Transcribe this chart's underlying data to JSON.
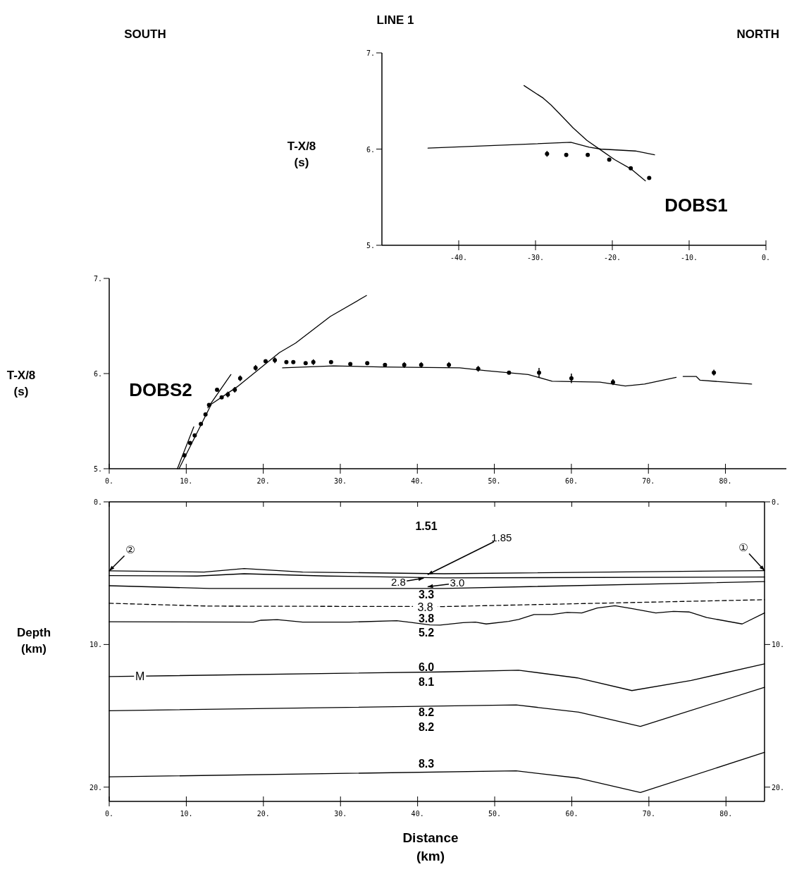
{
  "chart_data": [
    {
      "type": "line",
      "title": "LINE 1",
      "ylabel": "T-X/8 (s)",
      "xlim": [
        -50,
        0
      ],
      "ylim": [
        5,
        7
      ],
      "xticks": [
        {
          "value": -40,
          "label": "-40."
        },
        {
          "value": -30,
          "label": "-30."
        },
        {
          "value": -20,
          "label": "-20."
        },
        {
          "value": -10,
          "label": "-10."
        },
        {
          "value": 0,
          "label": "0."
        }
      ],
      "yticks": [
        {
          "value": 5,
          "label": "5."
        },
        {
          "value": 6,
          "label": "6."
        },
        {
          "value": 7,
          "label": "7."
        }
      ],
      "annotations": [
        "SOUTH",
        "NORTH",
        "DOBS1"
      ],
      "series": [
        {
          "type": "line",
          "color": "#000000",
          "x": [
            -44,
            -25.4,
            -23,
            -21.5,
            -17,
            -14.5
          ],
          "values": [
            6.01,
            6.07,
            6.02,
            6.0,
            5.98,
            5.94
          ]
        },
        {
          "type": "line",
          "color": "#000000",
          "x": [
            -31.5,
            -29,
            -28,
            -26.9,
            -25.1,
            -23.3,
            -21.5,
            -19.7,
            -17.5,
            -15.7
          ],
          "values": [
            6.66,
            6.53,
            6.46,
            6.37,
            6.22,
            6.09,
            5.99,
            5.89,
            5.79,
            5.67
          ]
        },
        {
          "type": "scatter",
          "color": "#000000",
          "marker": "circle",
          "x": [
            -28.5,
            -26,
            -23.2,
            -20.4,
            -17.6,
            -15.2
          ],
          "values": [
            5.95,
            5.94,
            5.94,
            5.89,
            5.8,
            5.7
          ],
          "errors": [
            0.03,
            0.02,
            null,
            null,
            null,
            null
          ]
        }
      ]
    },
    {
      "type": "line",
      "ylabel": "T-X/8 (s)",
      "xlim": [
        0,
        88
      ],
      "ylim": [
        5,
        7
      ],
      "xticks": [
        {
          "value": 0,
          "label": "0."
        },
        {
          "value": 10,
          "label": "10."
        },
        {
          "value": 20,
          "label": "20."
        },
        {
          "value": 30,
          "label": "30."
        },
        {
          "value": 40,
          "label": "40."
        },
        {
          "value": 50,
          "label": "50."
        },
        {
          "value": 60,
          "label": "60."
        },
        {
          "value": 70,
          "label": "70."
        },
        {
          "value": 80,
          "label": "80."
        }
      ],
      "yticks": [
        {
          "value": 5,
          "label": "5."
        },
        {
          "value": 6,
          "label": "6."
        },
        {
          "value": 7,
          "label": "7."
        }
      ],
      "annotations": [
        "DOBS2"
      ],
      "series": [
        {
          "type": "line",
          "color": "#000000",
          "x": [
            9.06,
            13.27,
            16.6,
            22.1,
            24.2,
            28.7,
            33.4
          ],
          "values": [
            5.0,
            5.68,
            5.86,
            6.22,
            6.32,
            6.6,
            6.82
          ]
        },
        {
          "type": "line",
          "color": "#000000",
          "x": [
            8.85,
            10.98
          ],
          "values": [
            5.0,
            5.44
          ]
        },
        {
          "type": "line",
          "color": "#000000",
          "x": [
            12.8,
            15.8
          ],
          "values": [
            5.64,
            5.99
          ]
        },
        {
          "type": "line",
          "color": "#000000",
          "x": [
            22.5,
            29.1,
            35.2,
            45.5,
            48.9,
            54.4,
            57.5,
            63.7,
            67.0,
            69.5,
            73.6,
            74.0,
            74.5,
            76.2,
            76.7,
            80.1,
            83.4
          ],
          "values": [
            6.06,
            6.08,
            6.07,
            6.06,
            6.03,
            5.99,
            5.92,
            5.91,
            5.87,
            5.89,
            5.96,
            null,
            5.97,
            5.97,
            5.93,
            5.91,
            5.89
          ]
        },
        {
          "type": "scatter",
          "color": "#000000",
          "marker": "circle",
          "x": [
            9.76,
            10.5,
            11.1,
            11.9,
            12.5,
            12.96,
            14.0,
            14.6,
            15.4,
            16.3,
            17.0,
            19.0,
            20.3,
            21.5,
            23.0,
            23.9,
            25.5,
            26.5,
            28.8,
            31.3,
            33.5,
            35.8,
            38.3,
            40.5,
            44.1,
            47.9,
            51.9,
            55.8,
            60.0,
            65.4,
            78.5
          ],
          "values": [
            5.14,
            5.27,
            5.35,
            5.47,
            5.57,
            5.67,
            5.83,
            5.75,
            5.78,
            5.83,
            5.95,
            6.06,
            6.13,
            6.14,
            6.12,
            6.12,
            6.11,
            6.12,
            6.12,
            6.1,
            6.11,
            6.09,
            6.09,
            6.09,
            6.09,
            6.05,
            6.01,
            6.01,
            5.95,
            5.91,
            6.01
          ],
          "errors": [
            null,
            null,
            null,
            null,
            null,
            null,
            null,
            null,
            0.03,
            0.03,
            0.03,
            0.03,
            null,
            0.03,
            null,
            null,
            null,
            0.03,
            null,
            null,
            null,
            null,
            0.03,
            0.03,
            0.03,
            0.03,
            null,
            0.05,
            0.05,
            0.03,
            0.03
          ]
        }
      ]
    },
    {
      "type": "line",
      "xlabel": "Distance (km)",
      "ylabel": "Depth (km)",
      "xlim": [
        0,
        85
      ],
      "ylim": [
        21,
        0
      ],
      "y2lim": [
        21,
        0
      ],
      "xticks": [
        {
          "value": 0,
          "label": "0."
        },
        {
          "value": 10,
          "label": "10."
        },
        {
          "value": 20,
          "label": "20."
        },
        {
          "value": 30,
          "label": "30."
        },
        {
          "value": 40,
          "label": "40."
        },
        {
          "value": 50,
          "label": "50."
        },
        {
          "value": 60,
          "label": "60."
        },
        {
          "value": 70,
          "label": "70."
        },
        {
          "value": 80,
          "label": "80."
        }
      ],
      "yticks": [
        {
          "value": 0,
          "label": "0."
        },
        {
          "value": 10,
          "label": "10."
        },
        {
          "value": 20,
          "label": "20."
        }
      ],
      "y2ticks": [
        {
          "value": 0,
          "label": "0."
        },
        {
          "value": 10,
          "label": "10."
        },
        {
          "value": 20,
          "label": "20."
        }
      ],
      "annotations": [
        "1.51",
        {
          "text": "1.85",
          "x": 41.3,
          "y": 5.1
        },
        {
          "text": "2.8",
          "x": 40.8,
          "y": 5.35
        },
        {
          "text": "3.0",
          "x": 41.3,
          "y": 5.95
        },
        "3.3",
        {
          "text": "3.8",
          "x": 41,
          "y": 7.35
        },
        "3.8",
        "5.2",
        "6.0",
        "8.1",
        "8.2",
        "8.2",
        "8.3",
        {
          "text": "M",
          "x": 4,
          "y": 12.2
        },
        {
          "text": "②",
          "x": 0,
          "y": 4.84
        },
        {
          "text": "①",
          "x": 85,
          "y": 4.82
        }
      ],
      "series": [
        {
          "type": "line",
          "color": "#000000",
          "x": [
            0,
            12.3,
            17.5,
            25.1,
            43.4,
            85
          ],
          "values": [
            4.84,
            4.92,
            4.68,
            4.92,
            5.04,
            4.82
          ]
        },
        {
          "type": "line",
          "color": "#000000",
          "x": [
            0,
            11.4,
            17.5,
            28.2,
            43.4,
            85
          ],
          "values": [
            5.17,
            5.2,
            5.04,
            5.2,
            5.33,
            5.27
          ]
        },
        {
          "type": "line",
          "color": "#000000",
          "x": [
            0,
            13,
            43.4,
            85
          ],
          "values": [
            5.88,
            6.07,
            6.07,
            5.59
          ]
        },
        {
          "type": "line",
          "color": "#000000",
          "line_style": "dashed",
          "x": [
            0,
            13,
            43.4,
            85
          ],
          "values": [
            7.11,
            7.31,
            7.34,
            6.86
          ]
        },
        {
          "type": "line",
          "color": "#000000",
          "x": [
            0,
            18.7,
            19.7,
            21.8,
            25.1,
            31.2,
            37.3,
            39.2,
            41.6,
            42.9,
            45.9,
            47.5,
            48.9,
            51.8,
            53.1,
            55.1,
            57.4,
            59.4,
            61.3,
            63.3,
            65.6,
            67.9,
            70.9,
            73.2,
            75.2,
            77.5,
            82.1,
            85
          ],
          "values": [
            8.41,
            8.43,
            8.3,
            8.26,
            8.43,
            8.43,
            8.33,
            8.46,
            8.63,
            8.64,
            8.47,
            8.43,
            8.56,
            8.38,
            8.25,
            7.9,
            7.9,
            7.75,
            7.79,
            7.44,
            7.28,
            7.49,
            7.79,
            7.68,
            7.72,
            8.11,
            8.56,
            7.79
          ]
        },
        {
          "type": "line",
          "color": "#000000",
          "x": [
            0,
            43.4,
            53.1,
            60.7,
            67.8,
            75.5,
            85
          ],
          "values": [
            12.25,
            11.92,
            11.8,
            12.34,
            13.23,
            12.52,
            11.36
          ]
        },
        {
          "type": "line",
          "color": "#000000",
          "x": [
            0,
            52.8,
            60.9,
            68.9,
            85
          ],
          "values": [
            14.64,
            14.24,
            14.74,
            15.74,
            13.0
          ]
        },
        {
          "type": "line",
          "color": "#000000",
          "x": [
            0,
            52.8,
            60.9,
            68.9,
            85
          ],
          "values": [
            19.28,
            18.86,
            19.37,
            20.38,
            17.56
          ]
        }
      ]
    }
  ]
}
